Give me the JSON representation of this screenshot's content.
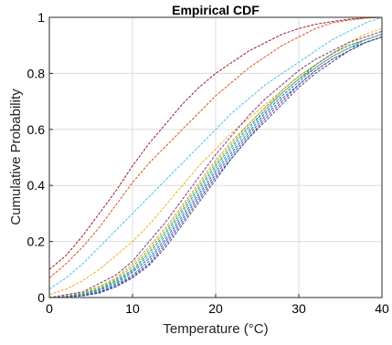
{
  "chart_data": {
    "type": "line",
    "title": "Empirical CDF",
    "xlabel": "Temperature (°C)",
    "ylabel": "Cumulative Probability",
    "xlim": [
      0,
      40
    ],
    "ylim": [
      0,
      1
    ],
    "xticks": [
      0,
      10,
      20,
      30,
      40
    ],
    "yticks": [
      0,
      0.2,
      0.4,
      0.6,
      0.8,
      1
    ],
    "xtick_labels": [
      "0",
      "10",
      "20",
      "30",
      "40"
    ],
    "ytick_labels": [
      "0",
      "0.2",
      "0.4",
      "0.6",
      "0.8",
      "1"
    ],
    "grid": true,
    "legend": "none",
    "series": [
      {
        "color": "#A2142F",
        "x": [
          0,
          2,
          4,
          6,
          8,
          10,
          12,
          14,
          16,
          18,
          20,
          22,
          24,
          26,
          28,
          30,
          32,
          34,
          36,
          38,
          40
        ],
        "y": [
          0.1,
          0.15,
          0.22,
          0.3,
          0.38,
          0.47,
          0.55,
          0.62,
          0.69,
          0.75,
          0.8,
          0.84,
          0.88,
          0.91,
          0.94,
          0.96,
          0.975,
          0.985,
          0.993,
          0.998,
          1.0
        ]
      },
      {
        "color": "#D95319",
        "x": [
          0,
          2,
          4,
          6,
          8,
          10,
          12,
          14,
          16,
          18,
          20,
          22,
          24,
          26,
          28,
          30,
          32,
          34,
          36,
          38,
          40
        ],
        "y": [
          0.07,
          0.12,
          0.18,
          0.25,
          0.33,
          0.41,
          0.48,
          0.54,
          0.6,
          0.66,
          0.72,
          0.77,
          0.82,
          0.86,
          0.9,
          0.93,
          0.96,
          0.98,
          0.99,
          0.997,
          1.0
        ]
      },
      {
        "color": "#4DBEEE",
        "x": [
          0,
          2,
          4,
          6,
          8,
          10,
          12,
          14,
          16,
          18,
          20,
          22,
          24,
          26,
          28,
          30,
          32,
          34,
          36,
          38,
          40
        ],
        "y": [
          0.03,
          0.07,
          0.12,
          0.18,
          0.24,
          0.3,
          0.36,
          0.42,
          0.48,
          0.54,
          0.6,
          0.66,
          0.71,
          0.76,
          0.8,
          0.84,
          0.88,
          0.92,
          0.95,
          0.98,
          1.0
        ]
      },
      {
        "color": "#EDB120",
        "x": [
          0,
          2,
          4,
          6,
          8,
          10,
          12,
          14,
          16,
          18,
          20,
          22,
          24,
          26,
          28,
          30,
          32,
          34,
          36,
          38,
          40
        ],
        "y": [
          0.01,
          0.03,
          0.06,
          0.1,
          0.15,
          0.2,
          0.26,
          0.33,
          0.4,
          0.47,
          0.53,
          0.59,
          0.64,
          0.69,
          0.74,
          0.79,
          0.83,
          0.87,
          0.91,
          0.94,
          0.96
        ]
      },
      {
        "color": "#7E2F8E",
        "x": [
          0,
          2,
          4,
          6,
          8,
          10,
          12,
          14,
          16,
          18,
          20,
          22,
          24,
          26,
          28,
          30,
          32,
          34,
          36,
          38,
          40
        ],
        "y": [
          0.0,
          0.01,
          0.02,
          0.05,
          0.08,
          0.13,
          0.2,
          0.27,
          0.35,
          0.43,
          0.51,
          0.58,
          0.65,
          0.71,
          0.76,
          0.81,
          0.85,
          0.88,
          0.91,
          0.93,
          0.95
        ]
      },
      {
        "color": "#77AC30",
        "x": [
          0,
          2,
          4,
          6,
          8,
          10,
          12,
          14,
          16,
          18,
          20,
          22,
          24,
          26,
          28,
          30,
          32,
          34,
          36,
          38,
          40
        ],
        "y": [
          0.0,
          0.005,
          0.015,
          0.035,
          0.065,
          0.11,
          0.17,
          0.24,
          0.32,
          0.4,
          0.48,
          0.55,
          0.62,
          0.68,
          0.74,
          0.79,
          0.83,
          0.87,
          0.9,
          0.92,
          0.94
        ]
      },
      {
        "color": "#0072BD",
        "x": [
          0,
          2,
          4,
          6,
          8,
          10,
          12,
          14,
          16,
          18,
          20,
          22,
          24,
          26,
          28,
          30,
          32,
          34,
          36,
          38,
          40
        ],
        "y": [
          0.0,
          0.003,
          0.01,
          0.025,
          0.05,
          0.09,
          0.14,
          0.21,
          0.29,
          0.37,
          0.45,
          0.52,
          0.59,
          0.66,
          0.72,
          0.77,
          0.82,
          0.86,
          0.89,
          0.91,
          0.93
        ]
      },
      {
        "color": "#2E8B57",
        "x": [
          0,
          2,
          4,
          6,
          8,
          10,
          12,
          14,
          16,
          18,
          20,
          22,
          24,
          26,
          28,
          30,
          32,
          34,
          36,
          38,
          40
        ],
        "y": [
          0.0,
          0.004,
          0.012,
          0.03,
          0.06,
          0.1,
          0.16,
          0.23,
          0.31,
          0.39,
          0.47,
          0.54,
          0.61,
          0.67,
          0.73,
          0.78,
          0.83,
          0.87,
          0.9,
          0.92,
          0.94
        ]
      },
      {
        "color": "#3B5BA5",
        "x": [
          0,
          2,
          4,
          6,
          8,
          10,
          12,
          14,
          16,
          18,
          20,
          22,
          24,
          26,
          28,
          30,
          32,
          34,
          36,
          38,
          40
        ],
        "y": [
          0.0,
          0.002,
          0.008,
          0.02,
          0.045,
          0.08,
          0.13,
          0.2,
          0.28,
          0.36,
          0.44,
          0.51,
          0.58,
          0.65,
          0.71,
          0.76,
          0.81,
          0.85,
          0.88,
          0.91,
          0.93
        ]
      },
      {
        "color": "#C9A227",
        "x": [
          0,
          2,
          4,
          6,
          8,
          10,
          12,
          14,
          16,
          18,
          20,
          22,
          24,
          26,
          28,
          30,
          32,
          34,
          36,
          38,
          40
        ],
        "y": [
          0.0,
          0.006,
          0.018,
          0.04,
          0.07,
          0.12,
          0.18,
          0.25,
          0.33,
          0.41,
          0.49,
          0.56,
          0.62,
          0.68,
          0.73,
          0.78,
          0.82,
          0.86,
          0.89,
          0.92,
          0.94
        ]
      },
      {
        "color": "#4DA3C7",
        "x": [
          0,
          2,
          4,
          6,
          8,
          10,
          12,
          14,
          16,
          18,
          20,
          22,
          24,
          26,
          28,
          30,
          32,
          34,
          36,
          38,
          40
        ],
        "y": [
          0.0,
          0.003,
          0.01,
          0.028,
          0.055,
          0.095,
          0.15,
          0.22,
          0.3,
          0.38,
          0.46,
          0.53,
          0.6,
          0.67,
          0.73,
          0.78,
          0.82,
          0.86,
          0.89,
          0.92,
          0.94
        ]
      },
      {
        "color": "#6C3A8C",
        "x": [
          0,
          2,
          4,
          6,
          8,
          10,
          12,
          14,
          16,
          18,
          20,
          22,
          24,
          26,
          28,
          30,
          32,
          34,
          36,
          38,
          40
        ],
        "y": [
          0.0,
          0.002,
          0.007,
          0.018,
          0.04,
          0.075,
          0.12,
          0.19,
          0.27,
          0.35,
          0.43,
          0.5,
          0.57,
          0.64,
          0.7,
          0.76,
          0.81,
          0.85,
          0.88,
          0.91,
          0.93
        ]
      },
      {
        "color": "#1F4E9E",
        "x": [
          0,
          2,
          4,
          6,
          8,
          10,
          12,
          14,
          16,
          18,
          20,
          22,
          24,
          26,
          28,
          30,
          32,
          34,
          36,
          38,
          40
        ],
        "y": [
          0.0,
          0.002,
          0.006,
          0.016,
          0.038,
          0.07,
          0.115,
          0.18,
          0.26,
          0.34,
          0.42,
          0.5,
          0.57,
          0.63,
          0.69,
          0.75,
          0.8,
          0.84,
          0.88,
          0.91,
          0.93
        ]
      }
    ]
  }
}
